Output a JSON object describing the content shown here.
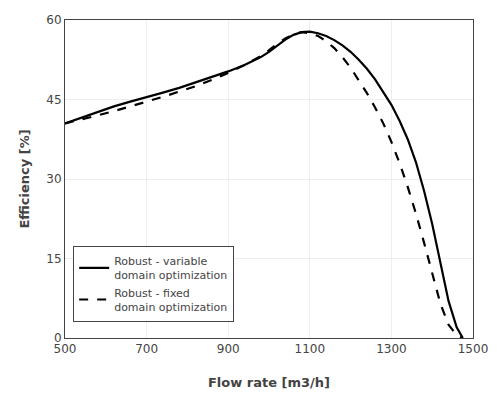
{
  "chart_data": {
    "type": "line",
    "xlabel": "Flow rate [m3/h]",
    "ylabel": "Efficiency [%]",
    "xlim": [
      500,
      1500
    ],
    "ylim": [
      0,
      60
    ],
    "xticks": [
      500,
      700,
      900,
      1100,
      1300,
      1500
    ],
    "yticks": [
      0,
      15,
      30,
      45,
      60
    ],
    "grid": true,
    "legend": "lower left",
    "series": [
      {
        "name": "Robust - variable\ndomain optimization",
        "color": "#000000",
        "line_style": "solid",
        "x": [
          500,
          540,
          580,
          620,
          660,
          700,
          740,
          780,
          820,
          860,
          900,
          940,
          960,
          980,
          1000,
          1020,
          1040,
          1060,
          1080,
          1100,
          1120,
          1140,
          1160,
          1180,
          1200,
          1220,
          1240,
          1260,
          1280,
          1300,
          1320,
          1340,
          1360,
          1380,
          1400,
          1420,
          1440,
          1460,
          1475
        ],
        "values": [
          40.5,
          41.6,
          42.7,
          43.7,
          44.6,
          45.4,
          46.3,
          47.2,
          48.2,
          49.2,
          50.3,
          51.5,
          52.2,
          53.0,
          54.0,
          55.2,
          56.3,
          57.2,
          57.7,
          57.8,
          57.5,
          57.0,
          56.2,
          55.2,
          54.0,
          52.5,
          50.8,
          48.8,
          46.5,
          44.0,
          41.0,
          37.5,
          33.2,
          27.8,
          21.5,
          14.0,
          7.0,
          2.0,
          0.0
        ]
      },
      {
        "name": "Robust - fixed\ndomain optimization",
        "color": "#000000",
        "line_style": "dashed",
        "x": [
          500,
          540,
          580,
          620,
          660,
          700,
          740,
          780,
          820,
          860,
          900,
          940,
          960,
          980,
          1000,
          1020,
          1040,
          1060,
          1080,
          1100,
          1120,
          1140,
          1160,
          1180,
          1200,
          1220,
          1240,
          1260,
          1280,
          1300,
          1320,
          1340,
          1360,
          1380,
          1400,
          1420,
          1440,
          1460,
          1475
        ],
        "values": [
          40.5,
          41.2,
          42.0,
          42.8,
          43.7,
          44.5,
          45.5,
          46.5,
          47.5,
          48.7,
          50.0,
          51.5,
          52.3,
          53.2,
          54.3,
          55.5,
          56.5,
          57.3,
          57.7,
          57.5,
          57.0,
          56.0,
          54.7,
          53.0,
          51.0,
          48.7,
          46.2,
          43.5,
          40.5,
          37.0,
          33.0,
          28.5,
          23.5,
          18.0,
          12.0,
          6.5,
          2.5,
          0.5,
          0.0
        ]
      }
    ]
  }
}
